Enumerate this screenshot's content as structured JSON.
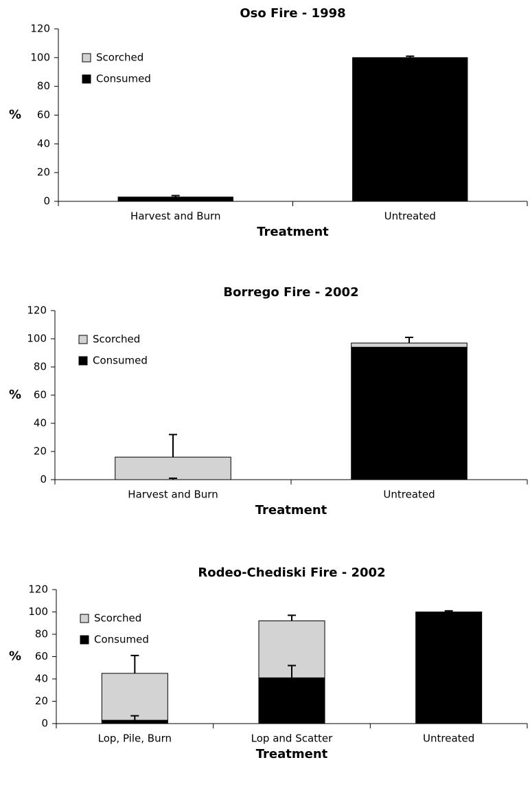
{
  "chart_data": [
    {
      "type": "bar",
      "title": "Oso Fire - 1998",
      "ylabel": "%",
      "xlabel": "Treatment",
      "categories": [
        "Harvest and Burn",
        "Untreated"
      ],
      "series": [
        {
          "name": "Consumed",
          "color": "#000000",
          "values": [
            3,
            100
          ],
          "errors": [
            1,
            1
          ]
        },
        {
          "name": "Scorched",
          "color": "#d3d3d3",
          "values": [
            0,
            0
          ],
          "errors": [
            null,
            null
          ]
        }
      ],
      "ylim": [
        0,
        120
      ],
      "yticks": [
        0,
        20,
        40,
        60,
        80,
        100,
        120
      ],
      "legend": "upper left"
    },
    {
      "type": "bar",
      "title": "Borrego Fire - 2002",
      "ylabel": "%",
      "xlabel": "Treatment",
      "categories": [
        "Harvest and Burn",
        "Untreated"
      ],
      "series": [
        {
          "name": "Consumed",
          "color": "#000000",
          "values": [
            0,
            94
          ],
          "errors": [
            1,
            null
          ]
        },
        {
          "name": "Scorched",
          "color": "#d3d3d3",
          "values": [
            16,
            3
          ],
          "errors": [
            16,
            4
          ]
        }
      ],
      "ylim": [
        0,
        120
      ],
      "yticks": [
        0,
        20,
        40,
        60,
        80,
        100,
        120
      ],
      "legend": "upper left"
    },
    {
      "type": "bar",
      "title": "Rodeo-Chediski Fire - 2002",
      "ylabel": "%",
      "xlabel": "Treatment",
      "categories": [
        "Lop, Pile, Burn",
        "Lop and Scatter",
        "Untreated"
      ],
      "series": [
        {
          "name": "Consumed",
          "color": "#000000",
          "values": [
            3,
            41,
            100
          ],
          "errors": [
            4,
            11,
            1
          ]
        },
        {
          "name": "Scorched",
          "color": "#d3d3d3",
          "values": [
            42,
            51,
            0
          ],
          "errors": [
            16,
            5,
            null
          ]
        }
      ],
      "ylim": [
        0,
        120
      ],
      "yticks": [
        0,
        20,
        40,
        60,
        80,
        100,
        120
      ],
      "legend": "upper left"
    }
  ]
}
